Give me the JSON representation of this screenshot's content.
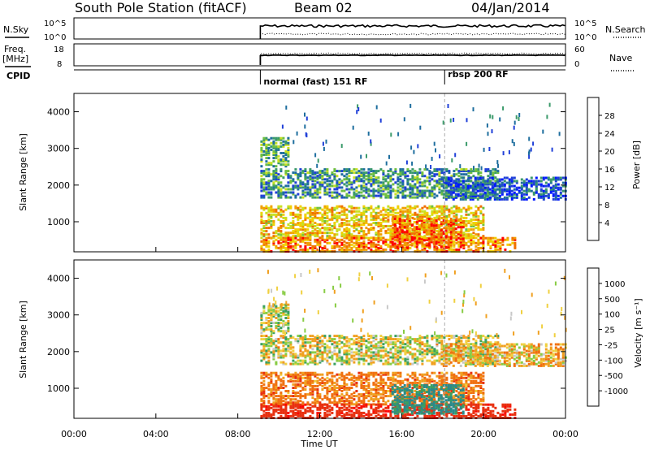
{
  "header": {
    "station": "South Pole Station (fitACF)",
    "beam": "Beam 02",
    "date": "04/Jan/2014"
  },
  "panels": {
    "nsky_label": "N.Sky",
    "nsearch_label": "N.Search",
    "noise_ticks": [
      "10^5",
      "10^0"
    ],
    "noise_right_ticks": [
      "10^5",
      "10^0"
    ],
    "freq_label_1": "Freq.",
    "freq_label_2": "[MHz]",
    "freq_ticks": [
      "18",
      "8"
    ],
    "nave_label": "Nave",
    "nave_ticks": [
      "60",
      "0"
    ],
    "cpid_label": "CPID",
    "cpid_modes": [
      "normal (fast) 151 RF",
      "rbsp 200 RF"
    ]
  },
  "axes": {
    "ylabel": "Slant Range [km]",
    "xlabel": "Time UT",
    "yticks": [
      1000,
      2000,
      3000,
      4000
    ],
    "xticks": [
      "00:00",
      "04:00",
      "08:00",
      "12:00",
      "16:00",
      "20:00",
      "00:00"
    ]
  },
  "power_scale": {
    "label": "Power [dB]",
    "ticks": [
      "28",
      "24",
      "20",
      "16",
      "12",
      "8",
      "4"
    ],
    "colors": [
      "#0018ff",
      "#2040d8",
      "#1e6e9e",
      "#3a9a6a",
      "#70c040",
      "#c8e020",
      "#f0d000",
      "#f0a000",
      "#f07000",
      "#ff0000"
    ]
  },
  "velocity_scale": {
    "label": "Velocity [m s⁻¹]",
    "ticks": [
      "1000",
      "500",
      "100",
      "25",
      "-25",
      "-100",
      "-500",
      "-1000"
    ],
    "colors": [
      "#1828a8",
      "#2060b8",
      "#2a8a8a",
      "#3aa060",
      "#88cc44",
      "#c8c8c8",
      "#f0d040",
      "#f0a020",
      "#f07010",
      "#e83010",
      "#ff0000"
    ]
  },
  "chart_data": {
    "type": "heatmap",
    "title": "South Pole Station (fitACF)  Beam 02  04/Jan/2014",
    "xlabel": "Time UT",
    "ylabel": "Slant Range [km]",
    "xlim": [
      0,
      24
    ],
    "ylim": [
      180,
      4500
    ],
    "data_start_hour": 9.1,
    "mode_change_hour": 18.1,
    "bands": [
      {
        "start": 9.1,
        "end": 10.5,
        "low": 2500,
        "high": 3300,
        "power": 12,
        "velocity": 40
      },
      {
        "start": 9.1,
        "end": 20.7,
        "low": 1650,
        "high": 2450,
        "power": 10,
        "velocity": 20
      },
      {
        "start": 18.0,
        "end": 24.0,
        "low": 1600,
        "high": 2200,
        "power": 6,
        "velocity": -40
      },
      {
        "start": 9.1,
        "end": 20.0,
        "low": 550,
        "high": 1450,
        "power": 20,
        "velocity": -150
      },
      {
        "start": 9.1,
        "end": 21.5,
        "low": 180,
        "high": 550,
        "power": 24,
        "velocity": -400
      },
      {
        "start": 15.5,
        "end": 19.0,
        "low": 300,
        "high": 1100,
        "power": 26,
        "velocity": 300
      }
    ]
  }
}
